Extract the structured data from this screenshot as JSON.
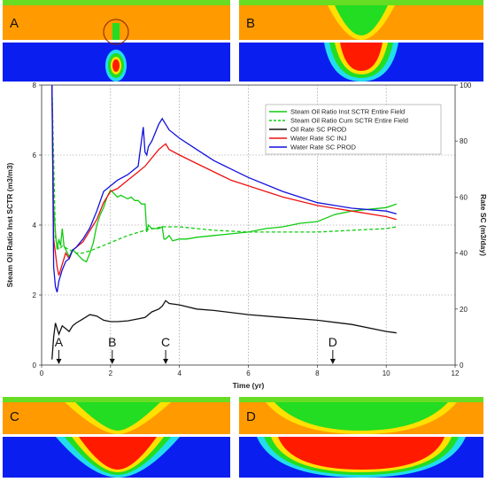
{
  "panels": [
    {
      "id": "A",
      "label": "A"
    },
    {
      "id": "B",
      "label": "B"
    },
    {
      "id": "C",
      "label": "C"
    },
    {
      "id": "D",
      "label": "D"
    }
  ],
  "colors": {
    "panel_top_band": "#ff9a00",
    "panel_top_strip": "#66dd22",
    "panel_bottom_band": "#0a1ef0",
    "chamber_red": "#ff1a00",
    "chamber_yellow": "#ffe000",
    "chamber_green": "#22dd22",
    "chamber_cyan": "#22ddee"
  },
  "chart_data": {
    "type": "line",
    "xlabel": "Time (yr)",
    "ylabel_left": "Steam Oil Ratio Inst SCTR (m3/m3)",
    "ylabel_right": "Rate SC (m3/day)",
    "xlim": [
      0,
      12
    ],
    "ylim_left": [
      0,
      8
    ],
    "ylim_right": [
      0,
      100
    ],
    "xticks": [
      "0",
      "2",
      "4",
      "6",
      "8",
      "10",
      "12"
    ],
    "yticks_left": [
      "0",
      "2",
      "4",
      "6",
      "8"
    ],
    "yticks_right": [
      "0",
      "20",
      "40",
      "60",
      "80",
      "100"
    ],
    "grid": true,
    "legend_position": "top-right",
    "series": [
      {
        "name": "Steam Oil Ratio Inst SCTR Entire  Field",
        "axis": "left",
        "color": "#11cc11",
        "dash": "solid",
        "x": [
          0.3,
          0.35,
          0.4,
          0.45,
          0.5,
          0.55,
          0.6,
          0.65,
          0.7,
          0.75,
          0.8,
          0.9,
          1.0,
          1.1,
          1.2,
          1.3,
          1.4,
          1.5,
          1.6,
          1.7,
          1.8,
          1.9,
          2.0,
          2.1,
          2.2,
          2.3,
          2.4,
          2.5,
          2.6,
          2.7,
          2.8,
          2.9,
          3.0,
          3.05,
          3.1,
          3.2,
          3.3,
          3.4,
          3.5,
          3.55,
          3.6,
          3.7,
          3.8,
          4.0,
          4.2,
          4.5,
          5.0,
          5.5,
          6.0,
          6.5,
          7.0,
          7.5,
          8.0,
          8.5,
          9.0,
          9.5,
          10.0,
          10.3
        ],
        "y": [
          8,
          4.5,
          3.8,
          3.3,
          3.6,
          3.4,
          3.9,
          3.4,
          3.3,
          3.2,
          3.1,
          3.3,
          3.2,
          3.1,
          3.0,
          2.95,
          3.2,
          3.5,
          4.0,
          4.3,
          4.5,
          4.8,
          5.0,
          4.9,
          4.8,
          4.85,
          4.8,
          4.75,
          4.8,
          4.7,
          4.7,
          4.6,
          4.6,
          3.8,
          4.0,
          3.9,
          3.9,
          3.9,
          3.95,
          3.6,
          3.6,
          3.7,
          3.55,
          3.6,
          3.6,
          3.65,
          3.7,
          3.75,
          3.8,
          3.9,
          3.95,
          4.05,
          4.1,
          4.3,
          4.4,
          4.45,
          4.5,
          4.6
        ]
      },
      {
        "name": "Steam Oil Ratio Cum SCTR Entire  Field",
        "axis": "left",
        "color": "#11cc11",
        "dash": "dashed",
        "x": [
          0.3,
          0.4,
          0.5,
          0.6,
          0.8,
          1.0,
          1.2,
          1.5,
          2.0,
          2.5,
          3.0,
          3.5,
          4.0,
          5.0,
          6.0,
          7.0,
          8.0,
          9.0,
          10.0,
          10.3
        ],
        "y": [
          8,
          3.6,
          3.3,
          3.4,
          3.3,
          3.2,
          3.2,
          3.3,
          3.5,
          3.7,
          3.85,
          3.95,
          3.95,
          3.85,
          3.8,
          3.8,
          3.8,
          3.85,
          3.9,
          3.95
        ]
      },
      {
        "name": "Oil Rate SC PROD",
        "axis": "right",
        "color": "#111111",
        "dash": "solid",
        "x": [
          0.3,
          0.35,
          0.4,
          0.45,
          0.5,
          0.6,
          0.7,
          0.8,
          0.9,
          1.0,
          1.2,
          1.4,
          1.6,
          1.8,
          2.0,
          2.2,
          2.5,
          2.8,
          3.0,
          3.2,
          3.4,
          3.5,
          3.6,
          3.7,
          4.0,
          4.5,
          5.0,
          6.0,
          7.0,
          8.0,
          9.0,
          10.0,
          10.3
        ],
        "y": [
          2,
          10,
          15,
          13,
          11,
          14,
          13,
          12,
          14,
          15,
          16.5,
          18,
          17.5,
          16,
          15.5,
          15.5,
          15.8,
          16.5,
          17,
          19,
          20,
          21,
          23,
          22,
          21.5,
          20,
          19.5,
          18,
          17,
          16,
          14.5,
          12,
          11.5
        ]
      },
      {
        "name": "Water Rate SC INJ",
        "axis": "right",
        "color": "#ee1111",
        "dash": "solid",
        "x": [
          0.3,
          0.35,
          0.4,
          0.45,
          0.5,
          0.6,
          0.7,
          0.8,
          0.9,
          1.0,
          1.2,
          1.4,
          1.6,
          1.8,
          2.0,
          2.2,
          2.5,
          2.8,
          3.0,
          3.2,
          3.4,
          3.5,
          3.6,
          3.7,
          4.0,
          4.5,
          5.0,
          5.5,
          6.0,
          7.0,
          8.0,
          9.0,
          10.0,
          10.3
        ],
        "y": [
          100,
          45,
          40,
          35,
          32,
          36,
          40,
          38,
          41,
          42,
          44,
          48,
          52,
          58,
          62,
          63,
          66,
          69,
          71,
          74,
          77,
          78,
          79,
          77,
          75,
          72,
          69,
          66,
          64,
          60,
          57,
          55,
          53,
          52
        ]
      },
      {
        "name": "Water Rate SC PROD",
        "axis": "right",
        "color": "#1111dd",
        "dash": "solid",
        "x": [
          0.3,
          0.35,
          0.4,
          0.45,
          0.5,
          0.6,
          0.7,
          0.8,
          0.9,
          1.0,
          1.2,
          1.4,
          1.6,
          1.8,
          2.0,
          2.2,
          2.5,
          2.8,
          2.95,
          3.0,
          3.05,
          3.1,
          3.2,
          3.4,
          3.5,
          3.6,
          3.7,
          4.0,
          4.5,
          5.0,
          5.5,
          6.0,
          7.0,
          8.0,
          9.0,
          10.0,
          10.3
        ],
        "y": [
          100,
          35,
          28,
          26,
          30,
          34,
          37,
          38,
          41,
          42,
          45,
          49,
          55,
          62,
          64,
          66,
          68,
          71,
          85,
          76,
          75,
          78,
          80,
          86,
          88,
          86,
          84,
          81,
          77,
          73,
          70,
          67,
          62,
          58,
          56,
          55,
          54
        ]
      }
    ],
    "markers": [
      {
        "label": "A",
        "x": 0.5
      },
      {
        "label": "B",
        "x": 2.05
      },
      {
        "label": "C",
        "x": 3.6
      },
      {
        "label": "D",
        "x": 8.45
      }
    ]
  }
}
